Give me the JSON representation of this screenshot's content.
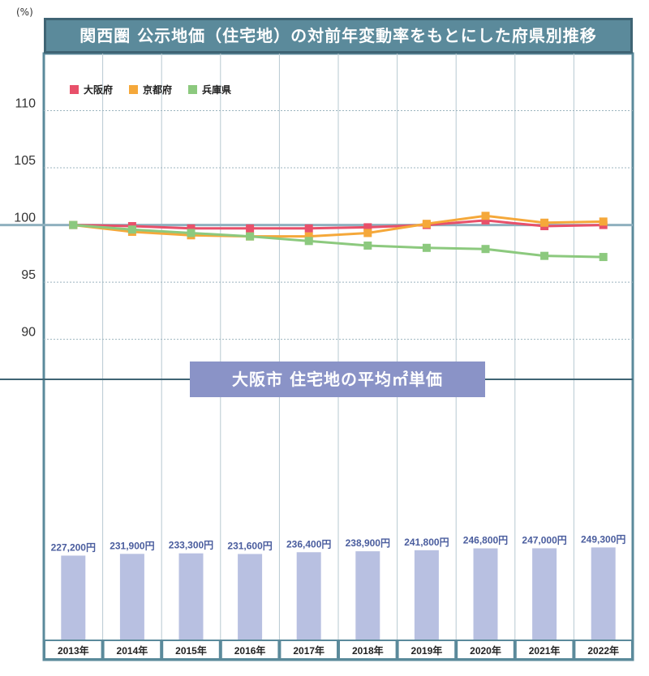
{
  "header": {
    "title": "関西圏 公示地価（住宅地）の対前年変動率をもとにした府県別推移",
    "unit": "(%)"
  },
  "bar_section_title": "大阪市 住宅地の平均㎡単価",
  "colors": {
    "osaka": "#e8506a",
    "kyoto": "#f5a83a",
    "hyogo": "#8cc97e",
    "bar": "#b8c0e1",
    "bar_label": "#4a5d9e",
    "frame": "#5b8a9b"
  },
  "chart_data": [
    {
      "type": "line",
      "x": [
        "2013年",
        "2014年",
        "2015年",
        "2016年",
        "2017年",
        "2018年",
        "2019年",
        "2020年",
        "2021年",
        "2022年"
      ],
      "yticks": [
        "110",
        "105",
        "100",
        "95",
        "90"
      ],
      "ylim": [
        86.5,
        115
      ],
      "grid": true,
      "legend": "top-left",
      "series": [
        {
          "name": "大阪府",
          "color": "#e8506a",
          "values": [
            100,
            99.9,
            99.7,
            99.7,
            99.7,
            99.8,
            100.0,
            100.4,
            99.9,
            100.0
          ]
        },
        {
          "name": "京都府",
          "color": "#f5a83a",
          "values": [
            100,
            99.4,
            99.1,
            99.0,
            99.0,
            99.3,
            100.1,
            100.8,
            100.2,
            100.3
          ]
        },
        {
          "name": "兵庫県",
          "color": "#8cc97e",
          "values": [
            100,
            99.6,
            99.3,
            99.0,
            98.6,
            98.2,
            98.0,
            97.9,
            97.3,
            97.2
          ]
        }
      ]
    },
    {
      "type": "bar",
      "categories": [
        "2013年",
        "2014年",
        "2015年",
        "2016年",
        "2017年",
        "2018年",
        "2019年",
        "2020年",
        "2021年",
        "2022年"
      ],
      "values": [
        227200,
        231900,
        233300,
        231600,
        236400,
        238900,
        241800,
        246800,
        247000,
        249300
      ],
      "labels": [
        "227,200円",
        "231,900円",
        "233,300円",
        "231,600円",
        "236,400円",
        "238,900円",
        "241,800円",
        "246,800円",
        "247,000円",
        "249,300円"
      ]
    }
  ]
}
